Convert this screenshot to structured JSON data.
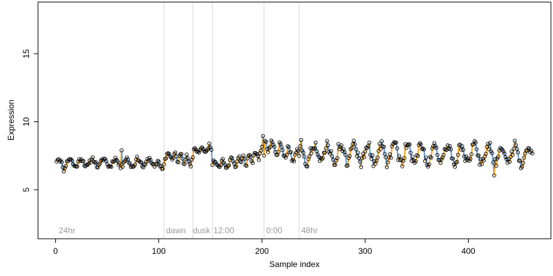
{
  "chart_data": {
    "type": "scatter",
    "xlabel": "Sample index",
    "ylabel": "Expression",
    "xlim": [
      -17,
      480
    ],
    "ylim": [
      1.4,
      18.8
    ],
    "xticks": [
      0,
      100,
      200,
      300,
      400
    ],
    "yticks": [
      5,
      10,
      15
    ],
    "grid": false,
    "vlines": [
      105,
      133,
      152,
      202,
      236
    ],
    "annotations": [
      {
        "text": "24hr",
        "x": 3
      },
      {
        "text": "dawn",
        "x": 107
      },
      {
        "text": "dusk",
        "x": 133
      },
      {
        "text": "12:00",
        "x": 153
      },
      {
        "text": "0:00",
        "x": 204
      },
      {
        "text": "48hr",
        "x": 238
      }
    ],
    "annotation_y": 2.0,
    "colors": {
      "up": "#f7a21b",
      "down": "#6a9bd1",
      "point_edge": "#000000",
      "vline": "#d9d9d9"
    },
    "segments": [
      {
        "x0": 1,
        "x1": 100,
        "y0": 7.0,
        "y1": 7.0,
        "amp": 0.3,
        "period": 11,
        "seed": 11
      },
      {
        "x0": 101,
        "x1": 105,
        "y0": 6.6,
        "y1": 6.9,
        "amp": 0.2,
        "period": 5,
        "seed": 12
      },
      {
        "x0": 106,
        "x1": 133,
        "y0": 7.6,
        "y1": 7.1,
        "amp": 0.3,
        "period": 6,
        "seed": 13
      },
      {
        "x0": 134,
        "x1": 151,
        "y0": 7.9,
        "y1": 8.0,
        "amp": 0.15,
        "period": 7,
        "seed": 14
      },
      {
        "x0": 152,
        "x1": 180,
        "y0": 6.9,
        "y1": 7.0,
        "amp": 0.3,
        "period": 8,
        "seed": 15
      },
      {
        "x0": 181,
        "x1": 202,
        "y0": 7.1,
        "y1": 7.8,
        "amp": 0.35,
        "period": 6,
        "seed": 16
      },
      {
        "x0": 203,
        "x1": 236,
        "y0": 8.4,
        "y1": 7.4,
        "amp": 0.45,
        "period": 8,
        "seed": 17
      },
      {
        "x0": 237,
        "x1": 462,
        "y0": 7.7,
        "y1": 7.6,
        "amp": 0.7,
        "period": 13,
        "seed": 18
      }
    ],
    "outliers": [
      {
        "x": 425,
        "y": 6.05
      },
      {
        "x": 201,
        "y": 8.95
      },
      {
        "x": 149,
        "y": 8.4
      },
      {
        "x": 8,
        "y": 6.35
      },
      {
        "x": 64,
        "y": 7.9
      }
    ]
  }
}
